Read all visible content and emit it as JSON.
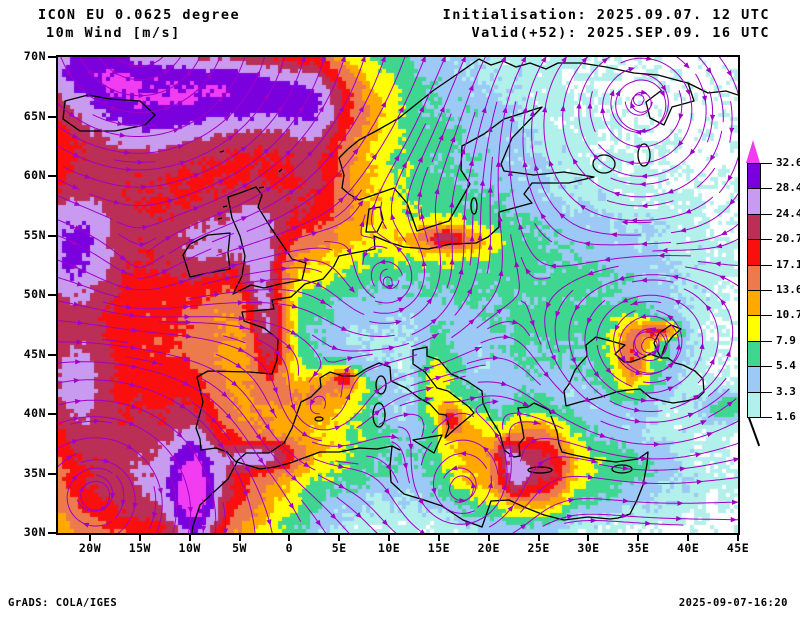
{
  "header": {
    "model": "ICON EU 0.0625 degree",
    "variable": "10m Wind [m/s]",
    "initialisation": "Initialisation: 2025.09.07. 12 UTC",
    "valid": "Valid(+52): 2025.SEP.09. 16 UTC"
  },
  "axes": {
    "lat": [
      "70N",
      "65N",
      "60N",
      "55N",
      "50N",
      "45N",
      "40N",
      "35N",
      "30N"
    ],
    "lon": [
      "20W",
      "15W",
      "10W",
      "5W",
      "0",
      "5E",
      "10E",
      "15E",
      "20E",
      "25E",
      "30E",
      "35E",
      "40E",
      "45E"
    ]
  },
  "colorbar": {
    "labels": [
      "32.6",
      "28.4",
      "24.4",
      "20.7",
      "17.1",
      "13.6",
      "10.7",
      "7.9",
      "5.4",
      "3.3",
      "1.6"
    ],
    "segment_colors_top_to_bottom": [
      "#7a00dd",
      "#c89bf0",
      "#bb2e55",
      "#fa0f0f",
      "#ec7a4d",
      "#ffa800",
      "#ffff00",
      "#3fd690",
      "#9cc9f5",
      "#b2f0ec"
    ],
    "arrow_color": "#f23cf2"
  },
  "map": {
    "levels": [
      1.6,
      3.3,
      5.4,
      7.9,
      10.7,
      13.6,
      17.1,
      20.7,
      24.4,
      28.4,
      32.6
    ],
    "fill_colors": [
      "#ffffff",
      "#b2f0ec",
      "#9cc9f5",
      "#3fd690",
      "#ffff00",
      "#ffa800",
      "#ec7a4d",
      "#fa0f0f",
      "#bb2e55",
      "#c89bf0",
      "#7a00dd",
      "#f23cf2"
    ],
    "streamline_color": "#a100c8",
    "coast_color": "#000000",
    "background": "#ffffff"
  },
  "footer": {
    "credit": "GrADS: COLA/IGES",
    "timestamp": "2025-09-07-16:20"
  }
}
